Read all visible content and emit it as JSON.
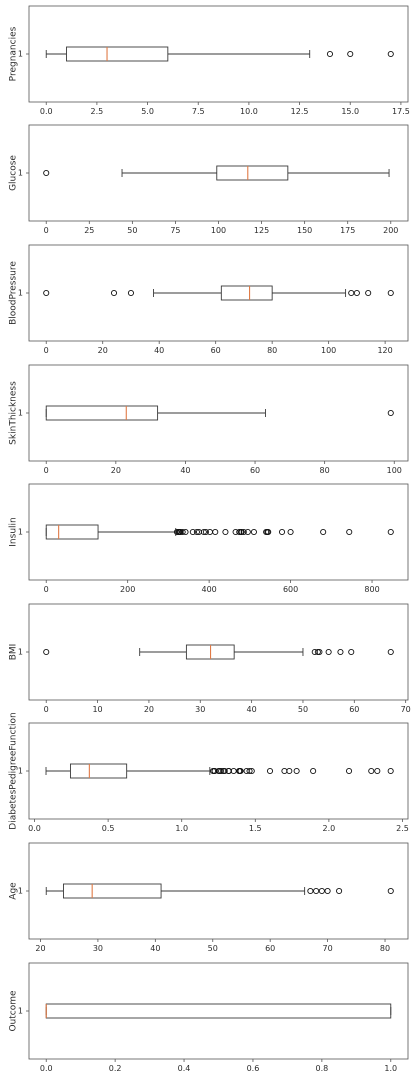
{
  "chart_data": [
    {
      "type": "boxplot",
      "ylabel": "Pregnancies",
      "category": "1",
      "xlim": [
        -0.85,
        17.85
      ],
      "xticks": [
        0.0,
        2.5,
        5.0,
        7.5,
        10.0,
        12.5,
        15.0,
        17.5
      ],
      "xtick_labels": [
        "0.0",
        "2.5",
        "5.0",
        "7.5",
        "10.0",
        "12.5",
        "15.0",
        "17.5"
      ],
      "box": {
        "whisker_low": 0,
        "q1": 1,
        "median": 3,
        "q3": 6,
        "whisker_high": 13
      },
      "outliers": [
        14,
        15,
        17
      ]
    },
    {
      "type": "boxplot",
      "ylabel": "Glucose",
      "category": "1",
      "xlim": [
        -10,
        210
      ],
      "xticks": [
        0,
        25,
        50,
        75,
        100,
        125,
        150,
        175,
        200
      ],
      "xtick_labels": [
        "0",
        "25",
        "50",
        "75",
        "100",
        "125",
        "150",
        "175",
        "200"
      ],
      "box": {
        "whisker_low": 44,
        "q1": 99,
        "median": 117,
        "q3": 140.25,
        "whisker_high": 199
      },
      "outliers": [
        0
      ]
    },
    {
      "type": "boxplot",
      "ylabel": "BloodPressure",
      "category": "1",
      "xlim": [
        -6.1,
        128.1
      ],
      "xticks": [
        0,
        20,
        40,
        60,
        80,
        100,
        120
      ],
      "xtick_labels": [
        "0",
        "20",
        "40",
        "60",
        "80",
        "100",
        "120"
      ],
      "box": {
        "whisker_low": 38,
        "q1": 62,
        "median": 72,
        "q3": 80,
        "whisker_high": 106
      },
      "outliers": [
        0,
        24,
        30,
        108,
        110,
        114,
        122
      ]
    },
    {
      "type": "boxplot",
      "ylabel": "SkinThickness",
      "category": "1",
      "xlim": [
        -4.95,
        103.95
      ],
      "xticks": [
        0,
        20,
        40,
        60,
        80,
        100
      ],
      "xtick_labels": [
        "0",
        "20",
        "40",
        "60",
        "80",
        "100"
      ],
      "box": {
        "whisker_low": 0,
        "q1": 0,
        "median": 23,
        "q3": 32,
        "whisker_high": 63
      },
      "outliers": [
        99
      ]
    },
    {
      "type": "boxplot",
      "ylabel": "Insulin",
      "category": "1",
      "xlim": [
        -42.3,
        888.3
      ],
      "xticks": [
        0,
        200,
        400,
        600,
        800
      ],
      "xtick_labels": [
        "0",
        "200",
        "400",
        "600",
        "800"
      ],
      "box": {
        "whisker_low": 0,
        "q1": 0,
        "median": 30.5,
        "q3": 127.25,
        "whisker_high": 318
      },
      "outliers": [
        321,
        325,
        326,
        328,
        330,
        335,
        342,
        360,
        370,
        375,
        387,
        392,
        402,
        415,
        440,
        465,
        474,
        478,
        480,
        485,
        495,
        510,
        540,
        543,
        545,
        579,
        600,
        680,
        744,
        846
      ]
    },
    {
      "type": "boxplot",
      "ylabel": "BMI",
      "category": "1",
      "xlim": [
        -3.355,
        70.455
      ],
      "xticks": [
        0,
        10,
        20,
        30,
        40,
        50,
        60,
        70
      ],
      "xtick_labels": [
        "0",
        "10",
        "20",
        "30",
        "40",
        "50",
        "60",
        "70"
      ],
      "box": {
        "whisker_low": 18.2,
        "q1": 27.3,
        "median": 32.0,
        "q3": 36.6,
        "whisker_high": 50.0
      },
      "outliers": [
        0,
        52.3,
        52.9,
        53.2,
        55.0,
        57.3,
        59.4,
        67.1
      ]
    },
    {
      "type": "boxplot",
      "ylabel": "DiabetesPedigreeFunction",
      "category": "1",
      "xlim": [
        -0.0376,
        2.5376
      ],
      "xticks": [
        0.0,
        0.5,
        1.0,
        1.5,
        2.0,
        2.5
      ],
      "xtick_labels": [
        "0.0",
        "0.5",
        "1.0",
        "1.5",
        "2.0",
        "2.5"
      ],
      "box": {
        "whisker_low": 0.078,
        "q1": 0.244,
        "median": 0.3725,
        "q3": 0.626,
        "whisker_high": 1.191
      },
      "outliers": [
        1.213,
        1.222,
        1.224,
        1.251,
        1.258,
        1.268,
        1.282,
        1.292,
        1.318,
        1.321,
        1.353,
        1.39,
        1.394,
        1.4,
        1.441,
        1.461,
        1.476,
        1.6,
        1.698,
        1.731,
        1.781,
        1.893,
        2.137,
        2.288,
        2.329,
        2.42
      ]
    },
    {
      "type": "boxplot",
      "ylabel": "Age",
      "category": "1",
      "xlim": [
        18,
        84
      ],
      "xticks": [
        20,
        30,
        40,
        50,
        60,
        70,
        80
      ],
      "xtick_labels": [
        "20",
        "30",
        "40",
        "50",
        "60",
        "70",
        "80"
      ],
      "box": {
        "whisker_low": 21,
        "q1": 24,
        "median": 29,
        "q3": 41,
        "whisker_high": 66
      },
      "outliers": [
        67,
        68,
        69,
        70,
        72,
        81
      ]
    },
    {
      "type": "boxplot",
      "ylabel": "Outcome",
      "category": "1",
      "xlim": [
        -0.05,
        1.05
      ],
      "xticks": [
        0.0,
        0.2,
        0.4,
        0.6,
        0.8,
        1.0
      ],
      "xtick_labels": [
        "0.0",
        "0.2",
        "0.4",
        "0.6",
        "0.8",
        "1.0"
      ],
      "box": {
        "whisker_low": 0,
        "q1": 0,
        "median": 0,
        "q3": 1,
        "whisker_high": 1
      },
      "outliers": []
    }
  ],
  "style": {
    "median_color": "#e07a46",
    "box_color": "#3a3a3a",
    "axis_color": "#555555",
    "text_color": "#2b2b2b"
  }
}
